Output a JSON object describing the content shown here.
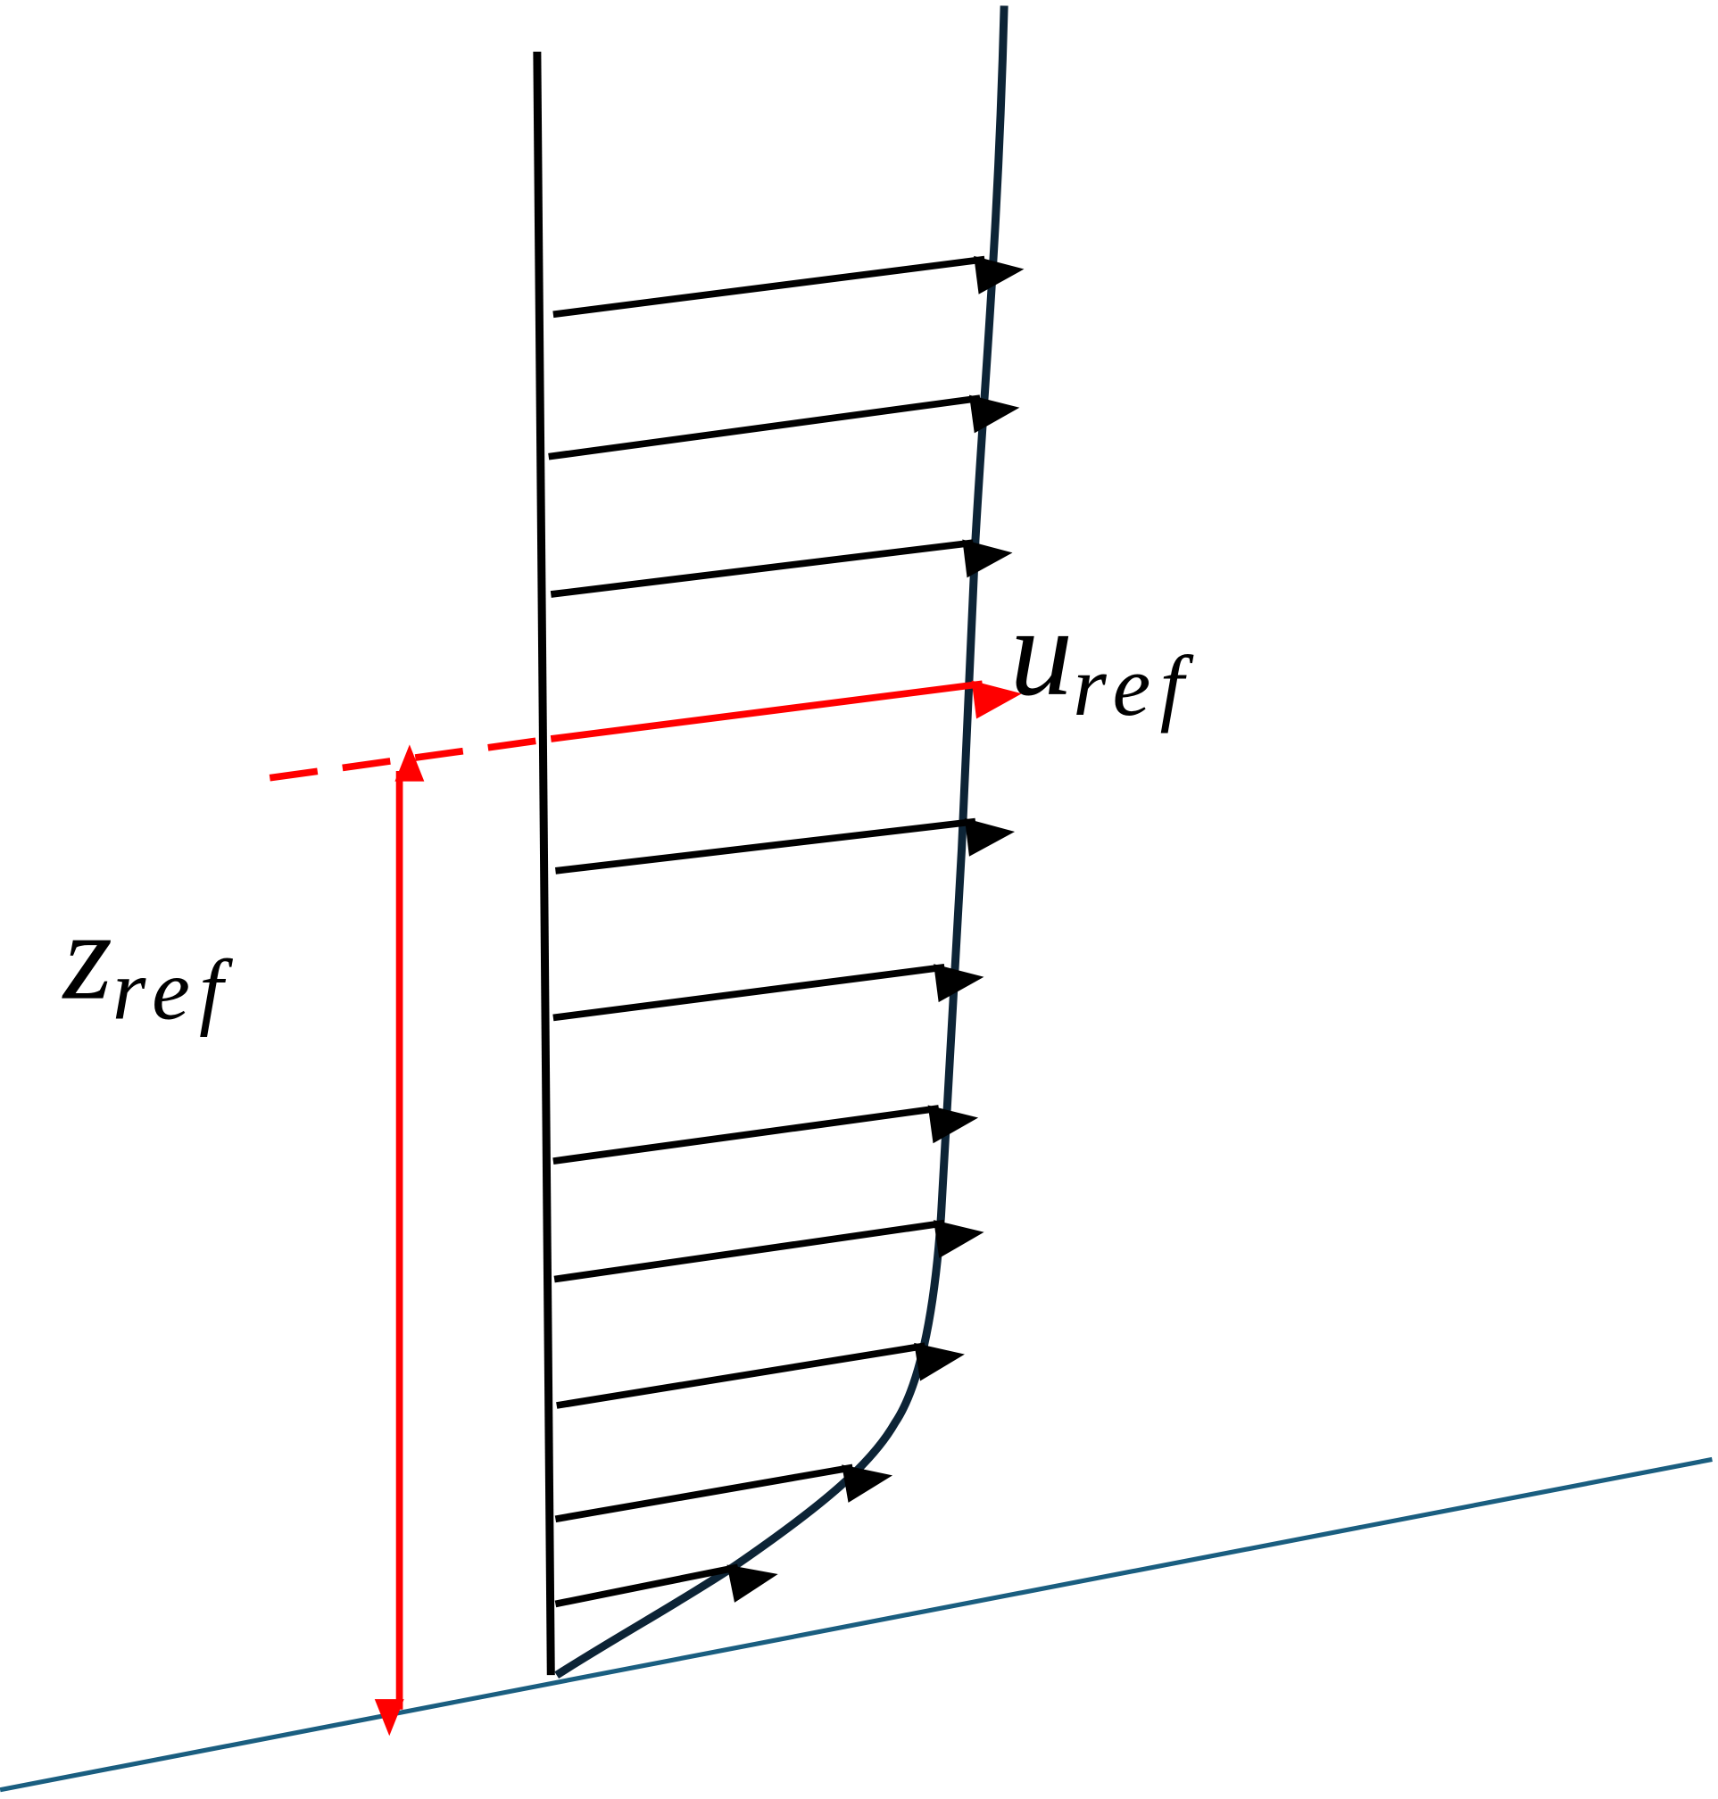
{
  "labels": {
    "u_ref": {
      "symbol": "u",
      "subscript": "ref"
    },
    "z_ref": {
      "symbol": "z",
      "subscript": "ref"
    }
  }
}
